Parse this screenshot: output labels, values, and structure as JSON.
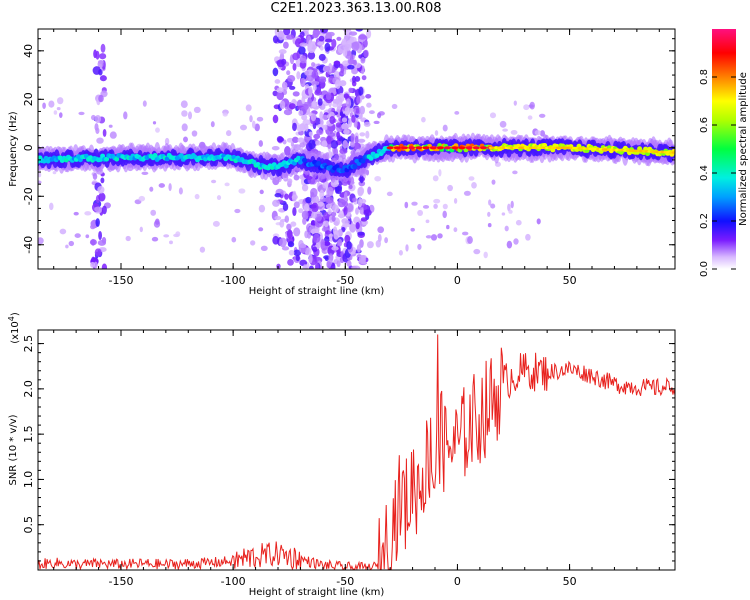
{
  "figure_title": "C2E1.2023.363.13.00.R08",
  "chart_data": [
    {
      "type": "heatmap",
      "title": "",
      "xlabel": "Height of straight line (km)",
      "ylabel": "Frequency (Hz)",
      "xlim": [
        -187,
        97
      ],
      "ylim": [
        -50,
        49
      ],
      "xticks": [
        -150,
        -100,
        -50,
        0,
        50
      ],
      "yticks": [
        -40,
        -20,
        0,
        20,
        40
      ],
      "colorbar": {
        "label": "Normalized spectral amplitude",
        "range": [
          0,
          1
        ],
        "ticks": [
          "0.0",
          "0.2",
          "0.4",
          "0.6",
          "0.8"
        ],
        "tick_values": [
          0.0,
          0.2,
          0.4,
          0.6,
          0.8
        ],
        "colormap": "rainbow"
      },
      "ridge": {
        "description_points_freq_center_hz": [
          [
            -187,
            -5
          ],
          [
            -150,
            -4
          ],
          [
            -120,
            -4
          ],
          [
            -100,
            -4
          ],
          [
            -90,
            -7
          ],
          [
            -80,
            -8
          ],
          [
            -70,
            -5
          ],
          [
            -60,
            -8
          ],
          [
            -50,
            -9
          ],
          [
            -40,
            -4
          ],
          [
            -30,
            0
          ],
          [
            -20,
            0
          ],
          [
            0,
            0
          ],
          [
            50,
            0
          ],
          [
            97,
            -2
          ]
        ]
      },
      "grid": false
    },
    {
      "type": "line",
      "title": "",
      "xlabel": "Height of straight line (km)",
      "ylabel": "SNR (10 * v/v)",
      "y_multiplier": "(x10",
      "y_multiplier_exp": "4",
      "y_multiplier_close": ")",
      "xlim": [
        -187,
        97
      ],
      "ylim": [
        0,
        2.65
      ],
      "xticks": [
        -150,
        -100,
        -50,
        0,
        50
      ],
      "yticks": [
        0.5,
        1.0,
        1.5,
        2.0,
        2.5
      ],
      "series_color": "#e8221e",
      "series": [
        {
          "x": [
            -187,
            -180,
            -170,
            -160,
            -150,
            -140,
            -130,
            -120,
            -110,
            -100,
            -90,
            -80,
            -70,
            -60,
            -50,
            -40,
            -35,
            -30,
            -28,
            -25,
            -22,
            -20,
            -18,
            -15,
            -12,
            -10,
            -8,
            -5,
            -2,
            0,
            5,
            10,
            15,
            20,
            25,
            30,
            40,
            50,
            60,
            70,
            80,
            90,
            97
          ],
          "y": [
            0.06,
            0.08,
            0.06,
            0.07,
            0.06,
            0.07,
            0.06,
            0.07,
            0.08,
            0.1,
            0.15,
            0.18,
            0.12,
            0.05,
            0.03,
            0.02,
            0.04,
            0.4,
            0.6,
            0.8,
            0.7,
            1.0,
            0.9,
            1.1,
            1.3,
            1.0,
            1.5,
            1.3,
            1.4,
            1.35,
            1.6,
            1.7,
            1.85,
            2.05,
            2.15,
            2.2,
            2.18,
            2.22,
            2.15,
            2.05,
            2.02,
            2.01,
            2.03
          ]
        }
      ],
      "grid": false
    }
  ]
}
